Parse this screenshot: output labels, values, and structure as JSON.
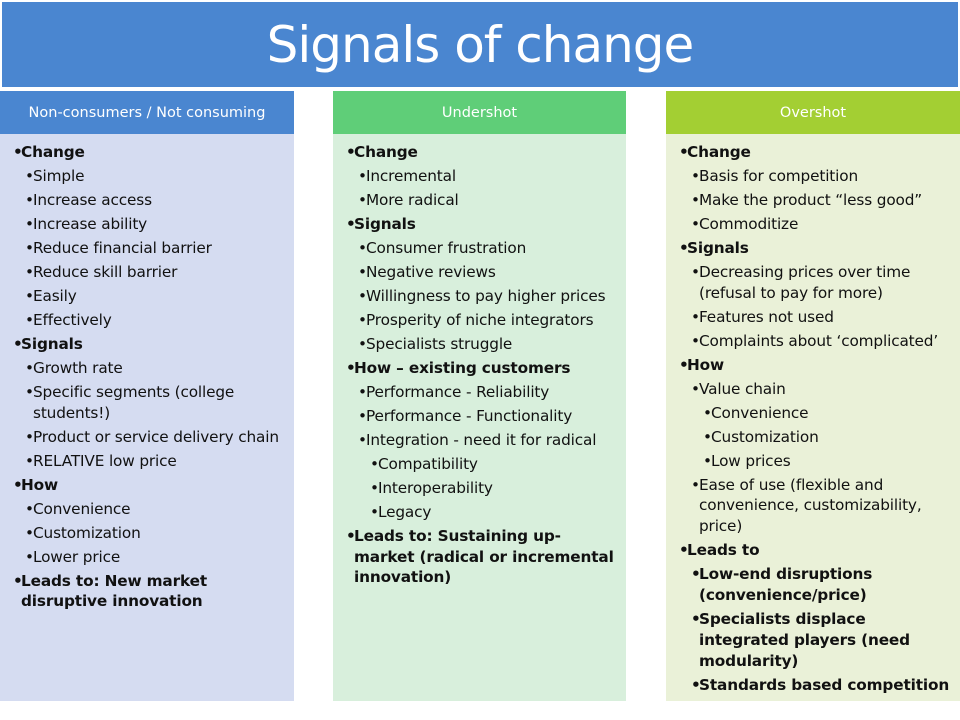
{
  "title": "Signals of change",
  "colors": {
    "blue": "#4a86d0",
    "green": "#5fce78",
    "lime": "#a3cf33"
  },
  "columns": [
    {
      "header": "Non-consumers / Not consuming",
      "items": [
        {
          "level": 0,
          "text": "Change"
        },
        {
          "level": 1,
          "text": "Simple"
        },
        {
          "level": 1,
          "text": "Increase access"
        },
        {
          "level": 1,
          "text": "Increase ability"
        },
        {
          "level": 1,
          "text": "Reduce financial barrier"
        },
        {
          "level": 1,
          "text": "Reduce skill barrier"
        },
        {
          "level": 1,
          "text": "Easily"
        },
        {
          "level": 1,
          "text": "Effectively"
        },
        {
          "level": 0,
          "text": "Signals"
        },
        {
          "level": 1,
          "text": "Growth rate"
        },
        {
          "level": 1,
          "text": "Specific segments (college students!)"
        },
        {
          "level": 1,
          "text": "Product or service delivery chain"
        },
        {
          "level": 1,
          "text": "RELATIVE low price"
        },
        {
          "level": 0,
          "text": "How"
        },
        {
          "level": 1,
          "text": "Convenience"
        },
        {
          "level": 1,
          "text": "Customization"
        },
        {
          "level": 1,
          "text": "Lower price"
        },
        {
          "level": 0,
          "text": "Leads to: New market disruptive innovation"
        }
      ]
    },
    {
      "header": "Undershot",
      "items": [
        {
          "level": 0,
          "text": "Change"
        },
        {
          "level": 1,
          "text": "Incremental"
        },
        {
          "level": 1,
          "text": "More radical"
        },
        {
          "level": 0,
          "text": "Signals"
        },
        {
          "level": 1,
          "text": "Consumer frustration"
        },
        {
          "level": 1,
          "text": "Negative reviews"
        },
        {
          "level": 1,
          "text": "Willingness to pay higher prices"
        },
        {
          "level": 1,
          "text": "Prosperity of niche integrators"
        },
        {
          "level": 1,
          "text": "Specialists struggle"
        },
        {
          "level": 0,
          "text": "How – existing customers"
        },
        {
          "level": 1,
          "text": "Performance - Reliability"
        },
        {
          "level": 1,
          "text": "Performance - Functionality"
        },
        {
          "level": 1,
          "text": "Integration - need it for radical"
        },
        {
          "level": 2,
          "text": "Compatibility"
        },
        {
          "level": 2,
          "text": "Interoperability"
        },
        {
          "level": 2,
          "text": "Legacy"
        },
        {
          "level": 0,
          "text": "Leads to: Sustaining up-market (radical or incremental innovation)"
        }
      ]
    },
    {
      "header": "Overshot",
      "items": [
        {
          "level": 0,
          "text": "Change"
        },
        {
          "level": 1,
          "text": "Basis for competition"
        },
        {
          "level": 1,
          "text": "Make the product “less good”"
        },
        {
          "level": 1,
          "text": "Commoditize"
        },
        {
          "level": 0,
          "text": "Signals"
        },
        {
          "level": 1,
          "text": "Decreasing prices over time (refusal to pay for more)"
        },
        {
          "level": 1,
          "text": "Features not used"
        },
        {
          "level": 1,
          "text": "Complaints about ‘complicated’"
        },
        {
          "level": 0,
          "text": "How"
        },
        {
          "level": 1,
          "text": "Value chain"
        },
        {
          "level": 2,
          "text": "Convenience"
        },
        {
          "level": 2,
          "text": "Customization"
        },
        {
          "level": 2,
          "text": "Low prices"
        },
        {
          "level": 1,
          "text": "Ease of use (flexible and convenience, customizability, price)"
        },
        {
          "level": 0,
          "text": "Leads to"
        },
        {
          "level": 1,
          "bold": true,
          "text": "Low-end disruptions (convenience/price)"
        },
        {
          "level": 1,
          "bold": true,
          "text": "Specialists displace integrated players  (need modularity)"
        },
        {
          "level": 1,
          "bold": true,
          "text": "Standards based competition"
        }
      ]
    }
  ]
}
